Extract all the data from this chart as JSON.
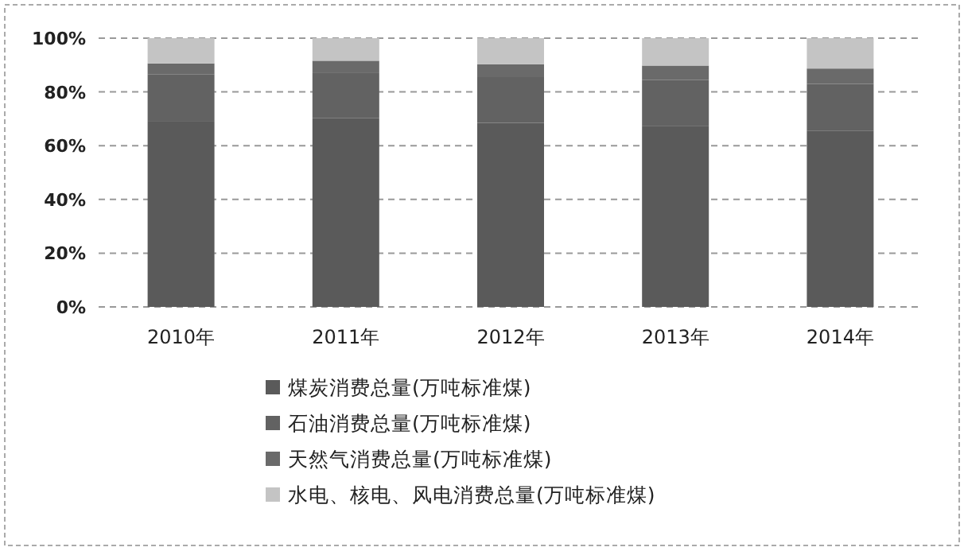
{
  "chart_data": {
    "type": "bar",
    "stacked": true,
    "categories": [
      "2010年",
      "2011年",
      "2012年",
      "2013年",
      "2014年"
    ],
    "series": [
      {
        "name": "煤炭消费总量(万吨标准煤)",
        "color": "#5a5a5a",
        "values": [
          69.2,
          70.2,
          68.5,
          67.4,
          65.6
        ]
      },
      {
        "name": "石油消费总量(万吨标准煤)",
        "color": "#626262",
        "values": [
          17.4,
          16.8,
          17.0,
          17.1,
          17.4
        ]
      },
      {
        "name": "天然气消费总量(万吨标准煤)",
        "color": "#6a6a6a",
        "values": [
          4.0,
          4.6,
          4.8,
          5.3,
          5.7
        ]
      },
      {
        "name": "水电、核电、风电消费总量(万吨标准煤)",
        "color": "#c4c4c4",
        "values": [
          9.4,
          8.4,
          9.7,
          10.2,
          11.3
        ]
      }
    ],
    "ylim": [
      0,
      100
    ],
    "yticks": [
      {
        "value": 0,
        "label": "0%"
      },
      {
        "value": 20,
        "label": "20%"
      },
      {
        "value": 40,
        "label": "40%"
      },
      {
        "value": 60,
        "label": "60%"
      },
      {
        "value": 80,
        "label": "80%"
      },
      {
        "value": 100,
        "label": "100%"
      }
    ],
    "grid": "y",
    "legend": "bottom"
  }
}
